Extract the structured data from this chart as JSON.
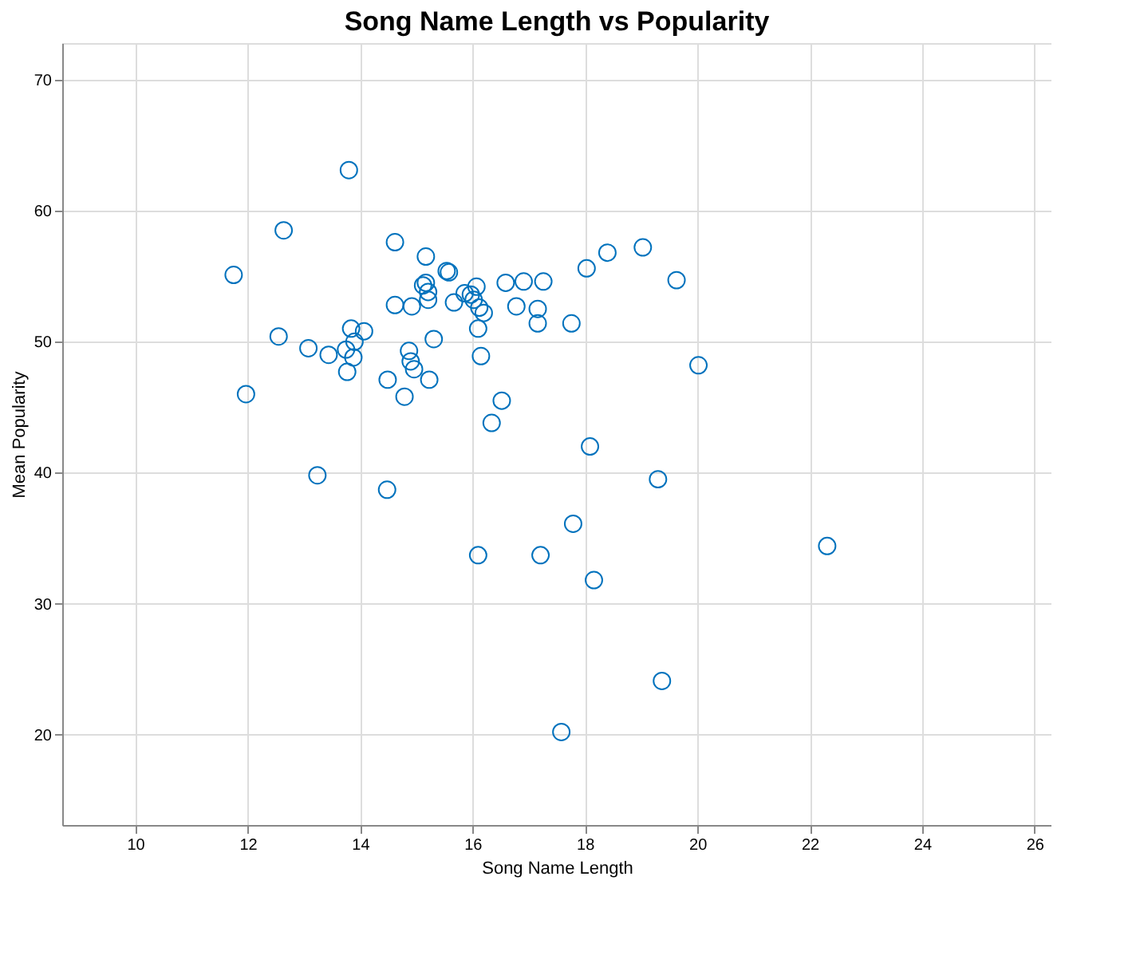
{
  "chart_data": {
    "type": "scatter",
    "title": "Song Name Length vs Popularity",
    "xlabel": "Song Name Length",
    "ylabel": "Mean Popularity",
    "xlim": [
      8.7,
      26.3
    ],
    "ylim": [
      13.1,
      72.8
    ],
    "xticks": [
      10,
      12,
      14,
      16,
      18,
      20,
      22,
      24,
      26
    ],
    "yticks": [
      20,
      30,
      40,
      50,
      60,
      70
    ],
    "grid": true,
    "marker": "circle",
    "series": [
      {
        "color": "#0072bd",
        "x": [
          11.75,
          11.97,
          12.64,
          12.55,
          13.08,
          13.24,
          13.44,
          13.8,
          13.84,
          14.07,
          13.9,
          13.75,
          13.88,
          13.77,
          14.49,
          14.48,
          14.62,
          14.62,
          14.79,
          14.87,
          14.9,
          14.96,
          14.92,
          15.12,
          15.17,
          15.17,
          15.21,
          15.21,
          15.23,
          15.31,
          15.54,
          15.58,
          15.67,
          15.86,
          15.97,
          16.07,
          16.02,
          16.12,
          16.2,
          16.1,
          16.15,
          16.1,
          16.34,
          16.52,
          16.59,
          16.91,
          17.26,
          16.78,
          17.16,
          17.16,
          17.76,
          18.03,
          18.4,
          19.03,
          19.63,
          20.02,
          18.09,
          19.3,
          17.79,
          17.21,
          18.16,
          19.37,
          17.58,
          22.31
        ],
        "values": [
          55.1,
          46.0,
          58.5,
          50.4,
          49.5,
          39.8,
          49.0,
          63.1,
          51.0,
          50.8,
          50.0,
          49.4,
          48.8,
          47.7,
          47.1,
          38.7,
          57.6,
          52.8,
          45.8,
          49.3,
          48.5,
          47.9,
          52.7,
          54.3,
          54.5,
          56.5,
          53.8,
          53.2,
          47.1,
          50.2,
          55.4,
          55.3,
          53.0,
          53.7,
          53.6,
          54.2,
          53.2,
          52.6,
          52.2,
          51.0,
          48.9,
          33.7,
          43.8,
          45.5,
          54.5,
          54.6,
          54.6,
          52.7,
          52.5,
          51.4,
          51.4,
          55.6,
          56.8,
          57.2,
          54.7,
          48.2,
          42.0,
          39.5,
          36.1,
          33.7,
          31.8,
          24.1,
          20.2,
          34.4
        ]
      }
    ]
  }
}
